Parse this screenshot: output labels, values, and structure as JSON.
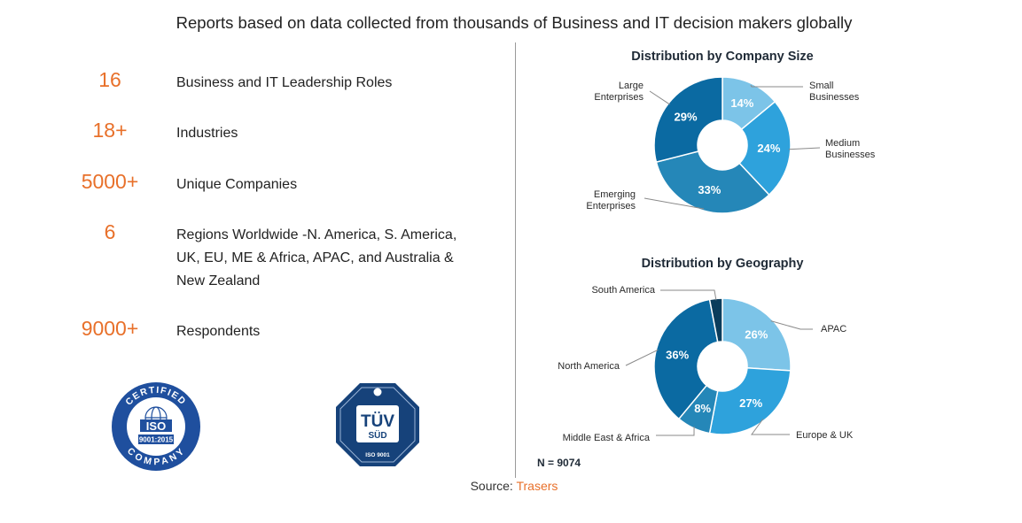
{
  "headline": "Reports based on data collected from thousands of Business and IT decision makers globally",
  "stats": [
    {
      "value": "16",
      "label": "Business and IT Leadership Roles"
    },
    {
      "value": "18+",
      "label": "Industries"
    },
    {
      "value": "5000+",
      "label": "Unique Companies"
    },
    {
      "value": "6",
      "label": "Regions Worldwide -N. America, S. America, UK, EU, ME & Africa, APAC, and Australia & New Zealand"
    },
    {
      "value": "9000+",
      "label": "Respondents"
    }
  ],
  "logos": {
    "iso": {
      "top_text": "CERTIFIED",
      "main": "ISO",
      "standard": "9001:2015",
      "bottom_text": "COMPANY"
    },
    "tuv": {
      "main": "TÜV",
      "sub": "SÜD",
      "standard": "ISO 9001"
    }
  },
  "chart_data": [
    {
      "type": "pie",
      "title": "Distribution by Company Size",
      "categories": [
        "Small Businesses",
        "Medium Businesses",
        "Emerging Enterprises",
        "Large Enterprises"
      ],
      "values": [
        14,
        24,
        33,
        29
      ],
      "value_labels": [
        "14%",
        "24%",
        "33%",
        "29%"
      ],
      "label_lines": [
        [
          "Small",
          "Businesses"
        ],
        [
          "Medium",
          "Businesses"
        ],
        [
          "Emerging",
          "Enterprises"
        ],
        [
          "Large",
          "Enterprises"
        ]
      ],
      "colors": [
        "#7cc4e8",
        "#2ea2dc",
        "#2587b8",
        "#0b6aa2"
      ]
    },
    {
      "type": "pie",
      "title": "Distribution by Geography",
      "categories": [
        "APAC",
        "Europe & UK",
        "Middle East & Africa",
        "North America",
        "South America"
      ],
      "values": [
        26,
        27,
        8,
        36,
        3
      ],
      "value_labels": [
        "26%",
        "27%",
        "8%",
        "36%",
        ""
      ],
      "label_lines": [
        [
          "APAC"
        ],
        [
          "Europe & UK"
        ],
        [
          "Middle East & Africa"
        ],
        [
          "North America"
        ],
        [
          "South America"
        ]
      ],
      "colors": [
        "#7cc4e8",
        "#2ea2dc",
        "#2587b8",
        "#0b6aa2",
        "#0b3d5c"
      ],
      "note": "N = 9074"
    }
  ],
  "source": {
    "prefix": "Source: ",
    "brand": "Trasers"
  }
}
